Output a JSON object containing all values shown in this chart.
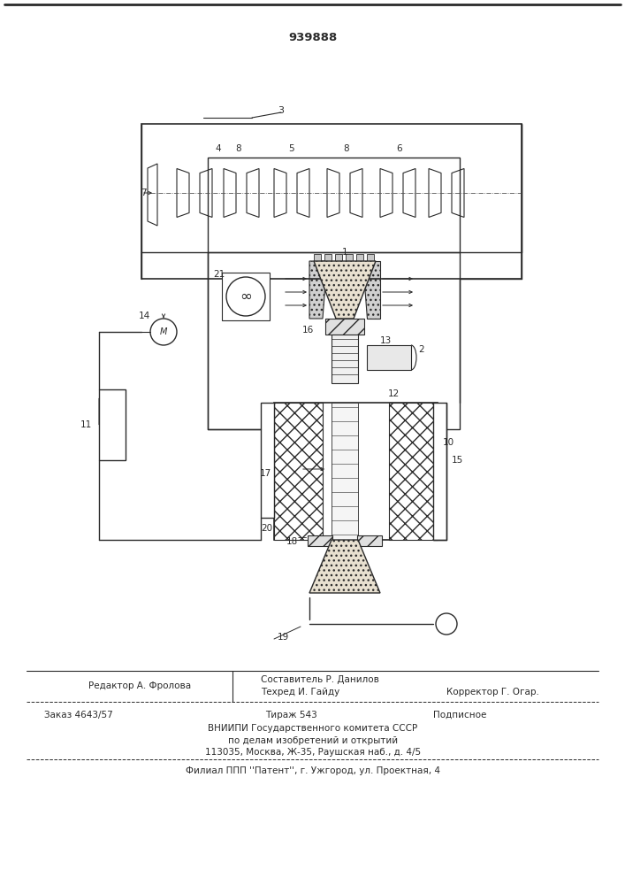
{
  "patent_number": "939888",
  "bg_color": "#ffffff",
  "line_color": "#2a2a2a",
  "footer": {
    "editor": "Редактор А. Фролова",
    "composer": "Составитель Р. Данилов",
    "techred": "Техред И. Гайду",
    "corrector": "Корректор Г. Огар.",
    "order": "Заказ 4643/57",
    "tirazh": "Тираж 543",
    "podpisnoe": "Подписное",
    "vniip1": "ВНИИПИ Государственного комитета СССР",
    "vniip2": "по делам изобретений и открытий",
    "vniip3": "113035, Москва, Ж-35, Раушская наб., д. 4/5",
    "filial": "Филиал ППП ''Патент'', г. Ужгород, ул. Проектная, 4"
  }
}
